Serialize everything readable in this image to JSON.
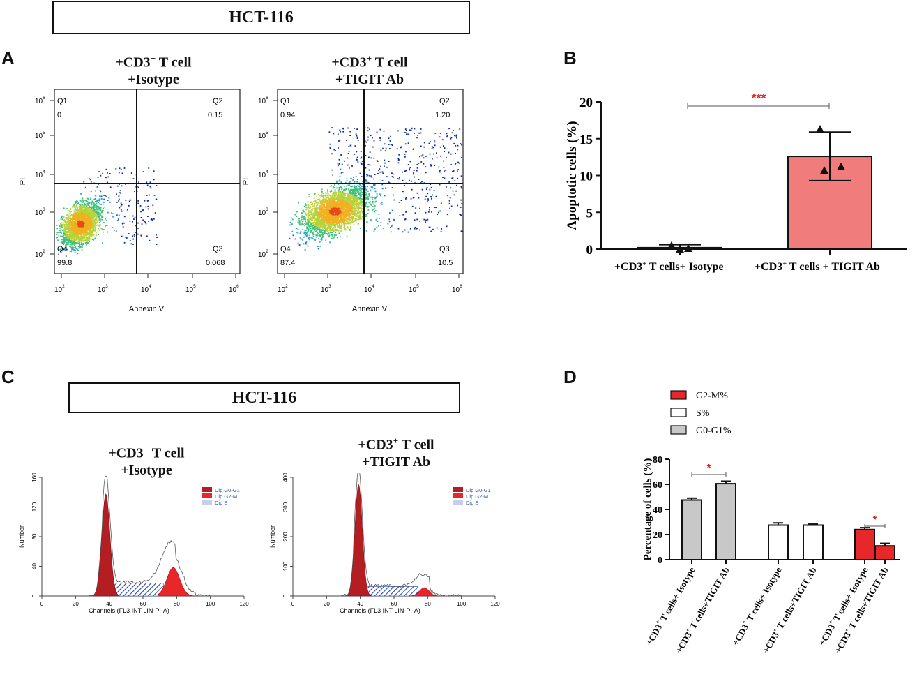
{
  "header_top": "HCT-116",
  "header_c": "HCT-116",
  "panels": {
    "A": "A",
    "B": "B",
    "C": "C",
    "D": "D"
  },
  "colors": {
    "bar_red": "#f07c7c",
    "bar_grey": "#c8c8c8",
    "sig_red": "#e02020",
    "hist_dark": "#b41e23",
    "hist_bright": "#e8272b"
  },
  "flow": [
    {
      "title_line1": "+CD3",
      "title_sup": "+",
      "title_line1b": " T cell",
      "title_line2": "+Isotype",
      "quadrants": {
        "q1": "Q1",
        "q1_val": "0",
        "q2": "Q2",
        "q2_val": "0.15",
        "q3": "Q3",
        "q3_val": "0.068",
        "q4": "Q4",
        "q4_val": "99.8"
      },
      "xlabel": "Annexin V",
      "ylabel": "PI",
      "xticks": [
        "10",
        "10",
        "10",
        "10",
        "10"
      ],
      "xexp": [
        "2",
        "3",
        "4",
        "5",
        "6"
      ],
      "yticks": [
        "10",
        "10",
        "10",
        "10",
        "10"
      ],
      "yexp": [
        "2",
        "3",
        "4",
        "5",
        "6"
      ]
    },
    {
      "title_line1": "+CD3",
      "title_sup": "+",
      "title_line1b": " T cell",
      "title_line2": "+TIGIT Ab",
      "quadrants": {
        "q1": "Q1",
        "q1_val": "0.94",
        "q2": "Q2",
        "q2_val": "1.20",
        "q3": "Q3",
        "q3_val": "10.5",
        "q4": "Q4",
        "q4_val": "87.4"
      },
      "xlabel": "Annexin V",
      "ylabel": "PI",
      "xticks": [
        "10",
        "10",
        "10",
        "10",
        "10"
      ],
      "xexp": [
        "2",
        "3",
        "4",
        "5",
        "6"
      ],
      "yticks": [
        "10",
        "10",
        "10",
        "10",
        "10"
      ],
      "yexp": [
        "2",
        "3",
        "4",
        "5",
        "6"
      ]
    }
  ],
  "histograms": [
    {
      "title_line1": "+CD3",
      "title_sup": "+",
      "title_line1b": " T cell",
      "title_line2": "+Isotype",
      "ylabel": "Number",
      "xlabel": "Channels  (FL3 INT LIN-PI-A)",
      "xticks": [
        "0",
        "20",
        "40",
        "60",
        "80",
        "100",
        "120"
      ],
      "yticks": [
        "0",
        "40",
        "80",
        "120",
        "160"
      ],
      "legend": [
        "Dip G0-G1",
        "Dip G2-M",
        "Dip S"
      ]
    },
    {
      "title_line1": "+CD3",
      "title_sup": "+",
      "title_line1b": " T cell",
      "title_line2": "+TIGIT Ab",
      "ylabel": "Number",
      "xlabel": "Channels  (FL3 INT LIN-PI-A)",
      "xticks": [
        "0",
        "20",
        "40",
        "60",
        "80",
        "100",
        "120"
      ],
      "yticks": [
        "0",
        "100",
        "200",
        "300",
        "400"
      ],
      "legend": [
        "Dip G0-G1",
        "Dip G2-M",
        "Dip S"
      ]
    }
  ],
  "chart_data": [
    {
      "type": "bar",
      "panel": "B",
      "ylabel": "Apoptotic cells (%)",
      "ylim": [
        0,
        20
      ],
      "yticks": [
        "0",
        "5",
        "10",
        "15",
        "20"
      ],
      "categories": [
        {
          "pre": "+CD3",
          "sup": "+",
          "post": " T cells+ Isotype"
        },
        {
          "pre": "+CD3",
          "sup": "+",
          "post": " T cells + TIGIT Ab"
        }
      ],
      "values": [
        0.2,
        12.6
      ],
      "errors": [
        0.4,
        3.3
      ],
      "points": [
        [
          0.5,
          0.0,
          0.1
        ],
        [
          16.3,
          10.7,
          11.2
        ]
      ],
      "significance": "***"
    },
    {
      "type": "bar",
      "panel": "D",
      "ylabel": "Percentage of cells (%)",
      "ylim": [
        0,
        80
      ],
      "yticks": [
        "0",
        "20",
        "40",
        "60",
        "80"
      ],
      "legend": [
        "G2-M%",
        "S%",
        "G0-G1%"
      ],
      "groups": [
        "G0-G1%",
        "S%",
        "G2-M%"
      ],
      "series": [
        {
          "name": "+CD3+ T cells+ Isotype",
          "pre": "+CD3",
          "sup": "+",
          "post": " T cells+ Isotype",
          "values": [
            47.5,
            27.5,
            24.0
          ],
          "errors": [
            1.5,
            1.8,
            1.5
          ]
        },
        {
          "name": "+CD3+ T cells+TIGIT Ab",
          "pre": "+CD3",
          "sup": "+",
          "post": " T cells+TIGIT Ab",
          "values": [
            60.5,
            27.5,
            11.0
          ],
          "errors": [
            2.0,
            0.8,
            2.0
          ]
        }
      ],
      "significance": [
        "*",
        "",
        "*"
      ]
    }
  ]
}
